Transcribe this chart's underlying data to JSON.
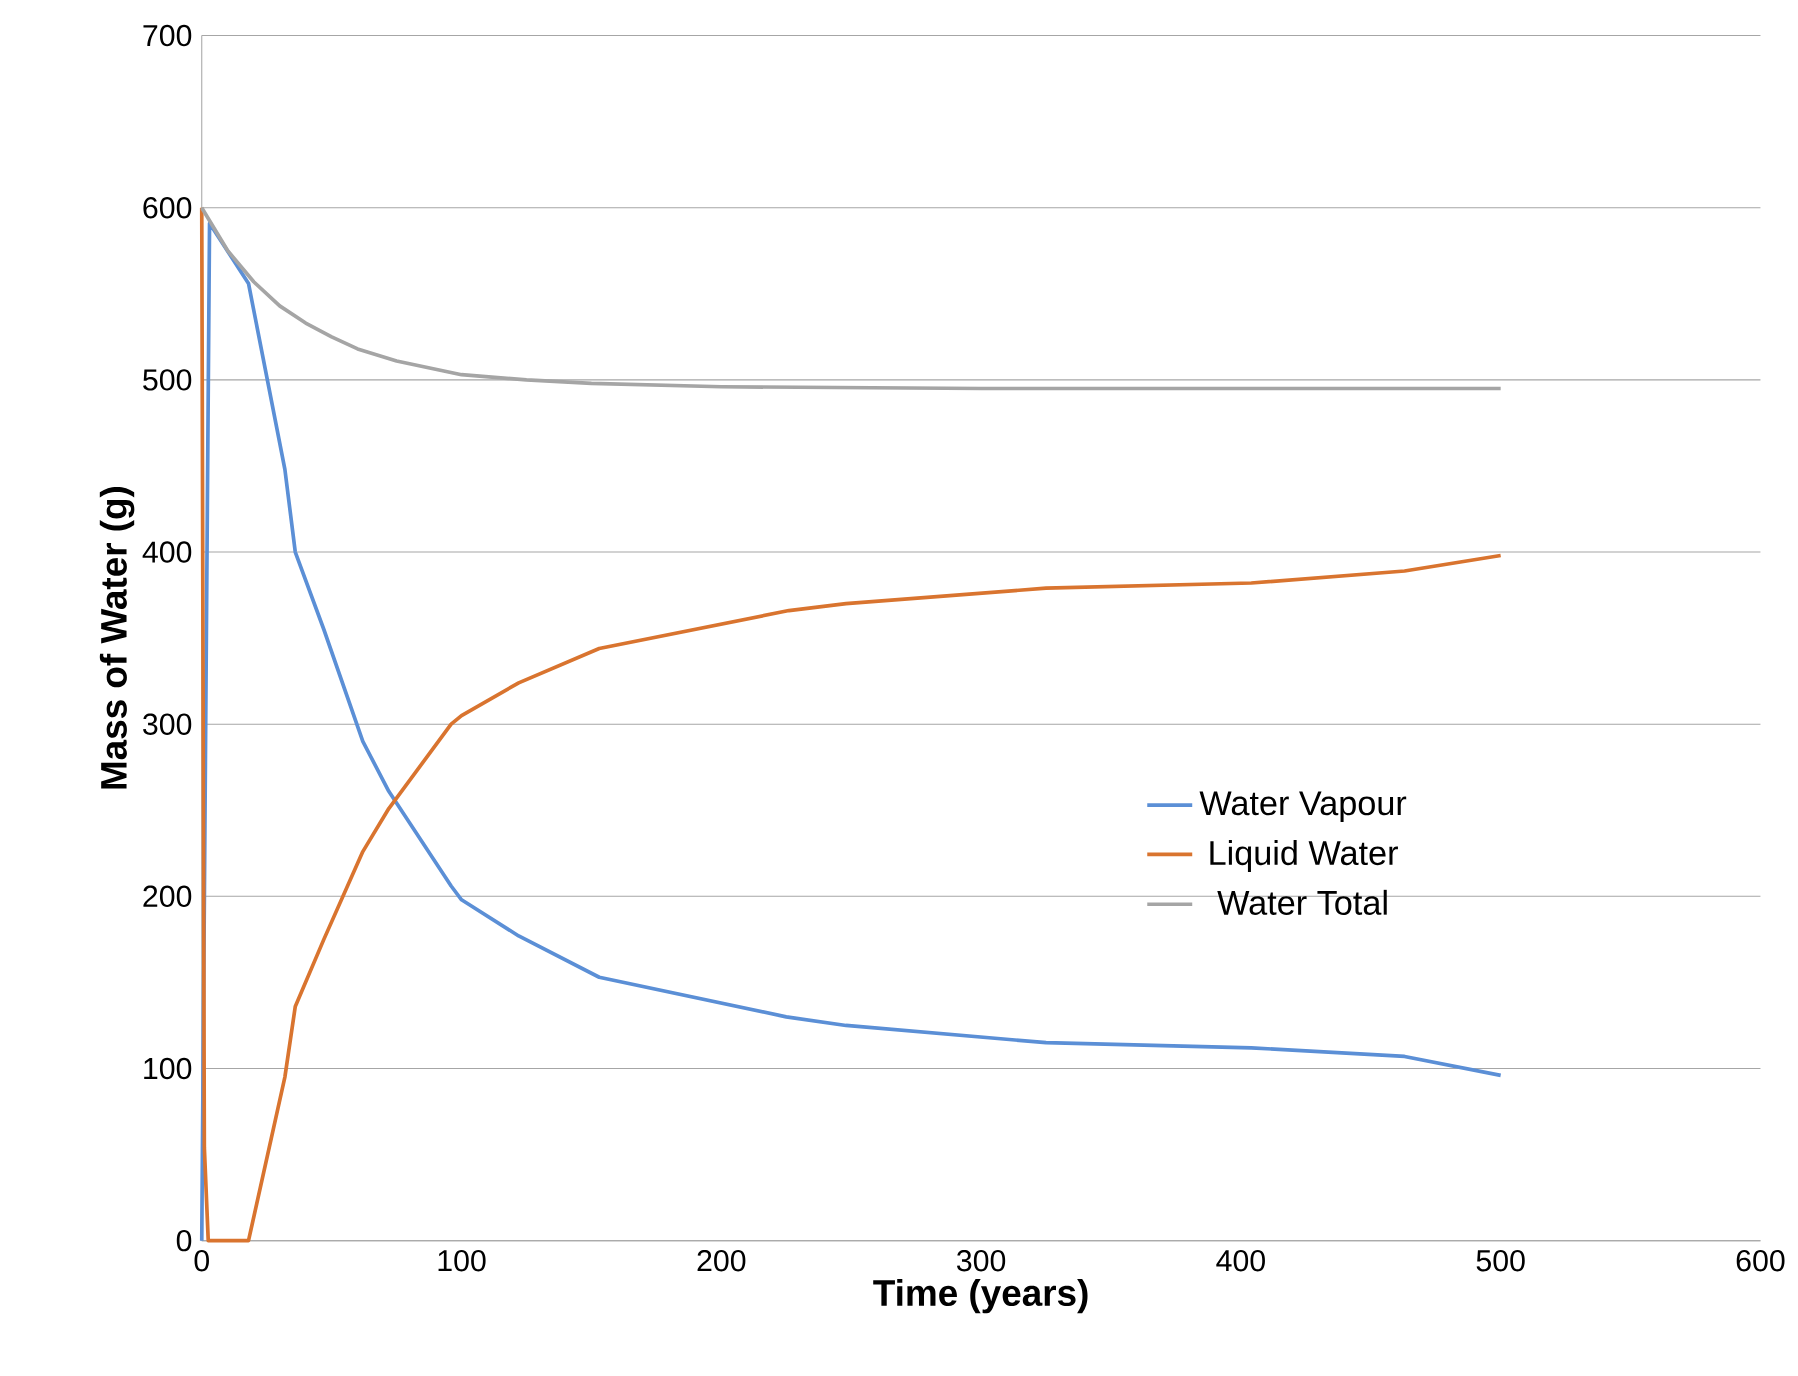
{
  "chart_data": {
    "type": "line",
    "xlabel": "Time (years)",
    "ylabel": "Mass of Water (g)",
    "xlim": [
      0,
      600
    ],
    "xticks": [
      0,
      100,
      200,
      300,
      400,
      500,
      600
    ],
    "ylim": [
      0,
      700
    ],
    "yticks": [
      0,
      100,
      200,
      300,
      400,
      500,
      600,
      700
    ],
    "grid": "y",
    "legend": "right",
    "marker": "none",
    "line_style": "solid",
    "series": [
      {
        "name": "Water Vapour",
        "color": "#5b8fd6",
        "x": [
          0,
          3,
          18,
          32,
          36,
          47,
          62,
          72,
          96,
          100,
          122,
          153,
          225,
          248,
          325,
          404,
          463,
          500
        ],
        "values": [
          0,
          591,
          556,
          448,
          400,
          355,
          290,
          261,
          206,
          198,
          177,
          153,
          130,
          125,
          115,
          112,
          107,
          96
        ]
      },
      {
        "name": "Liquid Water",
        "color": "#d9742f",
        "x": [
          0,
          1,
          2.5,
          18,
          32,
          36,
          47,
          62,
          72,
          96,
          100,
          122,
          153,
          226,
          248,
          325,
          404,
          463,
          500
        ],
        "values": [
          600,
          54,
          0,
          0,
          95,
          136,
          175,
          226,
          251,
          300,
          305,
          324,
          344,
          366,
          370,
          379,
          382,
          389,
          398
        ]
      },
      {
        "name": "Water Total",
        "color": "#a5a5a5",
        "x": [
          0,
          10,
          20,
          30,
          40,
          50,
          60,
          75,
          100,
          125,
          150,
          200,
          300,
          400,
          500
        ],
        "values": [
          600,
          575,
          557,
          543,
          533,
          525,
          518,
          511,
          503,
          500,
          498,
          496,
          495,
          495,
          495
        ]
      }
    ]
  }
}
